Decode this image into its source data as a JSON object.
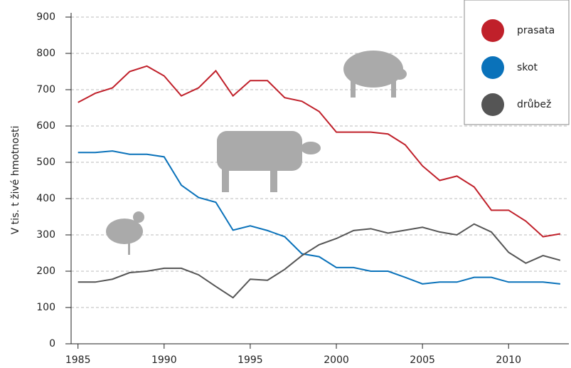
{
  "chart_data": {
    "type": "line",
    "y_label": "V tis. t živé hmotnosti",
    "x": [
      1985,
      1986,
      1987,
      1988,
      1989,
      1990,
      1991,
      1992,
      1993,
      1994,
      1995,
      1996,
      1997,
      1998,
      1999,
      2000,
      2001,
      2002,
      2003,
      2004,
      2005,
      2006,
      2007,
      2008,
      2009,
      2010,
      2011,
      2012,
      2013
    ],
    "series": [
      {
        "name": "prasata",
        "color": "#c0202a",
        "values": [
          665,
          690,
          705,
          750,
          765,
          738,
          683,
          705,
          752,
          683,
          725,
          725,
          678,
          668,
          640,
          583,
          583,
          583,
          578,
          548,
          490,
          450,
          462,
          432,
          368,
          368,
          338,
          295,
          303
        ]
      },
      {
        "name": "skot",
        "color": "#0a72ba",
        "values": [
          527,
          527,
          531,
          522,
          522,
          515,
          437,
          403,
          390,
          313,
          325,
          312,
          295,
          248,
          240,
          210,
          210,
          200,
          200,
          183,
          165,
          170,
          170,
          183,
          183,
          170,
          170,
          170,
          165
        ]
      },
      {
        "name": "drůbež",
        "color": "#555555",
        "values": [
          170,
          170,
          178,
          196,
          200,
          208,
          208,
          190,
          158,
          127,
          178,
          175,
          205,
          243,
          273,
          290,
          312,
          317,
          305,
          313,
          321,
          308,
          300,
          330,
          308,
          252,
          222,
          243,
          230
        ]
      }
    ],
    "xlim": [
      1984.6,
      2013.5
    ],
    "xticks": [
      1985,
      1990,
      1995,
      2000,
      2005,
      2010
    ],
    "ylim": [
      0,
      900
    ],
    "yticks": [
      0,
      100,
      200,
      300,
      400,
      500,
      600,
      700,
      800,
      900
    ],
    "grid": true,
    "legend": "top-right"
  }
}
